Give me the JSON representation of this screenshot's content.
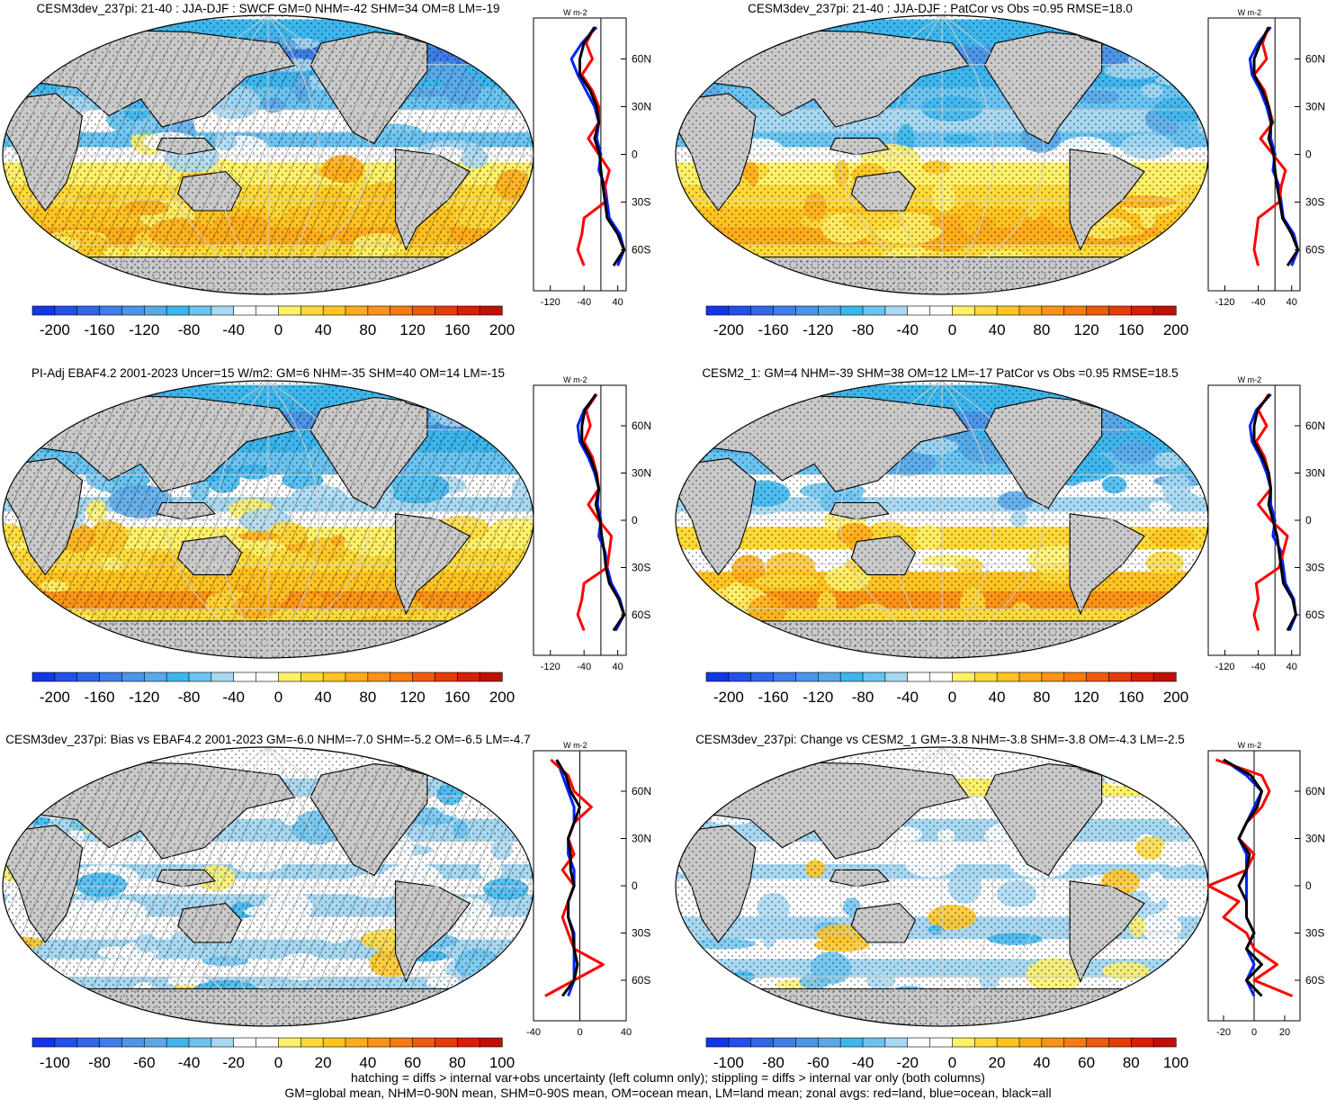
{
  "colors": {
    "land": "#c9c9c9",
    "zonal_land": "#ff0000",
    "zonal_ocean": "#0022ff",
    "zonal_all": "#000000",
    "hatch": "#000000",
    "palette": [
      "#1436e8",
      "#2350ea",
      "#3166ea",
      "#3f7ee8",
      "#4c95e7",
      "#5aa8e8",
      "#3cb6ec",
      "#6bc3f0",
      "#a7d8f2",
      "#ffffff",
      "#ffffff",
      "#fff06a",
      "#ffd93a",
      "#ffc322",
      "#ffac1a",
      "#fb9316",
      "#f67a10",
      "#ee5a0c",
      "#e53b09",
      "#d81e06",
      "#c01004"
    ]
  },
  "panels": [
    {
      "title": "CESM3dev_237pi: 21-40 : JJA-DJF : SWCF GM=0 NHM=-42 SHM=34 OM=8 LM=-19",
      "zonal_unit": "W m-2",
      "colorbar": [
        "-200",
        "-160",
        "-120",
        "-80",
        "-40",
        "0",
        "40",
        "80",
        "120",
        "160",
        "200"
      ],
      "chart_data": {
        "type": "heatmap",
        "variable": "SWCF",
        "stats": {
          "GM": 0,
          "NHM": -42,
          "SHM": 34,
          "OM": 8,
          "LM": -19
        },
        "colorbar_range": [
          -200,
          200
        ],
        "zonal_xticks": [
          "-120",
          "-40",
          "40"
        ],
        "zonal_xlim": [
          -160,
          60
        ],
        "zonal_yticks": [
          "60N",
          "30N",
          "0",
          "30S",
          "60S"
        ],
        "zonal_lat": [
          80,
          70,
          60,
          50,
          40,
          30,
          20,
          10,
          0,
          -10,
          -20,
          -30,
          -40,
          -50,
          -60,
          -70
        ],
        "zonal_land": [
          -15,
          -35,
          -20,
          -45,
          -20,
          -5,
          -5,
          -30,
          -5,
          20,
          10,
          10,
          -40,
          -45,
          -55,
          -40
        ],
        "zonal_ocean": [
          -10,
          -45,
          -70,
          -55,
          -35,
          -15,
          -5,
          -10,
          0,
          -5,
          10,
          15,
          20,
          45,
          55,
          40
        ],
        "zonal_all": [
          -15,
          -40,
          -50,
          -50,
          -25,
          -10,
          -5,
          -15,
          -3,
          0,
          5,
          10,
          15,
          40,
          55,
          30
        ]
      }
    },
    {
      "title": "CESM3dev_237pi: 21-40 : JJA-DJF : PatCor vs Obs =0.95 RMSE=18.0",
      "zonal_unit": "W m-2",
      "colorbar": [
        "-200",
        "-160",
        "-120",
        "-80",
        "-40",
        "0",
        "40",
        "80",
        "120",
        "160",
        "200"
      ],
      "chart_data": {
        "type": "heatmap",
        "variable": "SWCF",
        "stats": {
          "PatCor": 0.95,
          "RMSE": 18.0
        },
        "colorbar_range": [
          -200,
          200
        ],
        "zonal_xticks": [
          "-120",
          "-40",
          "40"
        ],
        "zonal_xlim": [
          -160,
          60
        ],
        "zonal_yticks": [
          "60N",
          "30N",
          "0",
          "30S",
          "60S"
        ],
        "zonal_lat": [
          80,
          70,
          60,
          50,
          40,
          30,
          20,
          10,
          0,
          -10,
          -20,
          -30,
          -40,
          -50,
          -60,
          -70
        ],
        "zonal_land": [
          -15,
          -30,
          -20,
          -50,
          -25,
          -15,
          -5,
          -35,
          -5,
          25,
          15,
          10,
          -40,
          -45,
          -50,
          -40
        ],
        "zonal_ocean": [
          -10,
          -40,
          -60,
          -55,
          -35,
          -20,
          -10,
          -10,
          0,
          -5,
          10,
          15,
          20,
          45,
          55,
          40
        ],
        "zonal_all": [
          -15,
          -35,
          -50,
          -50,
          -30,
          -15,
          -8,
          -15,
          -3,
          0,
          5,
          12,
          18,
          40,
          55,
          30
        ]
      }
    },
    {
      "title": "PI-Adj EBAF4.2 2001-2023 Uncer=15 W/m2: GM=6 NHM=-35 SHM=40 OM=14 LM=-15",
      "zonal_unit": "W m-2",
      "colorbar": [
        "-200",
        "-160",
        "-120",
        "-80",
        "-40",
        "0",
        "40",
        "80",
        "120",
        "160",
        "200"
      ],
      "chart_data": {
        "type": "heatmap",
        "variable": "SWCF",
        "stats": {
          "GM": 6,
          "NHM": -35,
          "SHM": 40,
          "OM": 14,
          "LM": -15
        },
        "colorbar_range": [
          -200,
          200
        ],
        "zonal_xticks": [
          "-120",
          "-40",
          "40"
        ],
        "zonal_xlim": [
          -160,
          60
        ],
        "zonal_yticks": [
          "60N",
          "30N",
          "0",
          "30S",
          "60S"
        ],
        "zonal_lat": [
          80,
          70,
          60,
          50,
          40,
          30,
          20,
          10,
          0,
          -10,
          -20,
          -30,
          -40,
          -50,
          -60,
          -70
        ],
        "zonal_land": [
          -10,
          -35,
          -25,
          -40,
          -20,
          -10,
          -5,
          -30,
          -5,
          25,
          20,
          15,
          -40,
          -45,
          -55,
          -40
        ],
        "zonal_ocean": [
          -10,
          -40,
          -55,
          -50,
          -30,
          -15,
          -5,
          -8,
          0,
          -5,
          10,
          15,
          25,
          45,
          55,
          35
        ],
        "zonal_all": [
          -12,
          -38,
          -45,
          -45,
          -25,
          -12,
          -5,
          -12,
          -2,
          2,
          8,
          12,
          20,
          42,
          55,
          30
        ]
      }
    },
    {
      "title": "CESM2_1: GM=4 NHM=-39 SHM=38 OM=12 LM=-17 PatCor vs Obs =0.95 RMSE=18.5",
      "zonal_unit": "W m-2",
      "colorbar": [
        "-200",
        "-160",
        "-120",
        "-80",
        "-40",
        "0",
        "40",
        "80",
        "120",
        "160",
        "200"
      ],
      "chart_data": {
        "type": "heatmap",
        "variable": "SWCF",
        "stats": {
          "GM": 4,
          "NHM": -39,
          "SHM": 38,
          "OM": 12,
          "LM": -17,
          "PatCor": 0.95,
          "RMSE": 18.5
        },
        "colorbar_range": [
          -200,
          200
        ],
        "zonal_xticks": [
          "-120",
          "-40",
          "40"
        ],
        "zonal_xlim": [
          -160,
          60
        ],
        "zonal_yticks": [
          "60N",
          "30N",
          "0",
          "30S",
          "60S"
        ],
        "zonal_lat": [
          80,
          70,
          60,
          50,
          40,
          30,
          20,
          10,
          0,
          -10,
          -20,
          -30,
          -40,
          -50,
          -60,
          -70
        ],
        "zonal_land": [
          -15,
          -40,
          -20,
          -45,
          -25,
          -15,
          -10,
          -40,
          -10,
          30,
          20,
          10,
          -45,
          -40,
          -50,
          -40
        ],
        "zonal_ocean": [
          -10,
          -45,
          -60,
          -55,
          -35,
          -20,
          -10,
          -10,
          0,
          -5,
          15,
          20,
          25,
          45,
          50,
          35
        ],
        "zonal_all": [
          -12,
          -42,
          -50,
          -50,
          -30,
          -15,
          -10,
          -15,
          -5,
          5,
          10,
          15,
          20,
          42,
          50,
          30
        ]
      }
    },
    {
      "title": "CESM3dev_237pi: Bias vs EBAF4.2 2001-2023 GM=-6.0 NHM=-7.0 SHM=-5.2 OM=-6.5 LM=-4.7",
      "zonal_unit": "W m-2",
      "colorbar": [
        "-100",
        "-80",
        "-60",
        "-40",
        "-20",
        "0",
        "20",
        "40",
        "60",
        "80",
        "100"
      ],
      "chart_data": {
        "type": "heatmap",
        "variable": "SWCF",
        "stats": {
          "GM": -6.0,
          "NHM": -7.0,
          "SHM": -5.2,
          "OM": -6.5,
          "LM": -4.7
        },
        "colorbar_range": [
          -100,
          100
        ],
        "zonal_xticks": [
          "-40",
          "0",
          "40"
        ],
        "zonal_xlim": [
          -40,
          40
        ],
        "zonal_yticks": [
          "60N",
          "30N",
          "0",
          "30S",
          "60S"
        ],
        "zonal_lat": [
          80,
          70,
          60,
          50,
          40,
          30,
          20,
          10,
          0,
          -10,
          -20,
          -30,
          -40,
          -50,
          -60,
          -70
        ],
        "zonal_land": [
          -25,
          -10,
          -5,
          10,
          -5,
          -10,
          -5,
          -15,
          -5,
          -10,
          -15,
          -10,
          -5,
          20,
          -5,
          -30
        ],
        "zonal_ocean": [
          -20,
          -15,
          -10,
          -5,
          -5,
          -10,
          -10,
          -5,
          -5,
          -10,
          -10,
          -5,
          -5,
          -5,
          -5,
          -10
        ],
        "zonal_all": [
          -20,
          -12,
          -8,
          0,
          -5,
          -10,
          -8,
          -8,
          -5,
          -10,
          -10,
          -6,
          -5,
          -2,
          -5,
          -15
        ]
      }
    },
    {
      "title": "CESM3dev_237pi: Change vs CESM2_1 GM=-3.8 NHM=-3.8 SHM=-3.8 OM=-4.3 LM=-2.5",
      "zonal_unit": "W m-2",
      "colorbar": [
        "-100",
        "-80",
        "-60",
        "-40",
        "-20",
        "0",
        "20",
        "40",
        "60",
        "80",
        "100"
      ],
      "chart_data": {
        "type": "heatmap",
        "variable": "SWCF",
        "stats": {
          "GM": -3.8,
          "NHM": -3.8,
          "SHM": -3.8,
          "OM": -4.3,
          "LM": -2.5
        },
        "colorbar_range": [
          -100,
          100
        ],
        "zonal_xticks": [
          "-20",
          "0",
          "20"
        ],
        "zonal_xlim": [
          -30,
          30
        ],
        "zonal_yticks": [
          "60N",
          "30N",
          "0",
          "30S",
          "60S"
        ],
        "zonal_lat": [
          80,
          70,
          60,
          50,
          40,
          30,
          20,
          10,
          0,
          -10,
          -20,
          -30,
          -40,
          -50,
          -60,
          -70
        ],
        "zonal_land": [
          -25,
          5,
          10,
          5,
          -5,
          -10,
          0,
          -5,
          -30,
          -10,
          -20,
          -5,
          0,
          15,
          0,
          25
        ],
        "zonal_ocean": [
          -20,
          -5,
          5,
          0,
          -5,
          -10,
          -5,
          -5,
          -5,
          -5,
          -5,
          0,
          -5,
          0,
          -5,
          0
        ],
        "zonal_all": [
          -20,
          -2,
          5,
          2,
          -5,
          -10,
          -3,
          -5,
          -10,
          -5,
          -5,
          0,
          -5,
          5,
          -5,
          5
        ]
      }
    }
  ],
  "footer": {
    "line1": "hatching = diffs > internal var+obs uncertainty (left column only); stippling = diffs > internal var only (both columns)",
    "line2": "GM=global mean, NHM=0-90N mean, SHM=0-90S mean, OM=ocean mean, LM=land mean; zonal avgs: red=land, blue=ocean, black=all"
  }
}
